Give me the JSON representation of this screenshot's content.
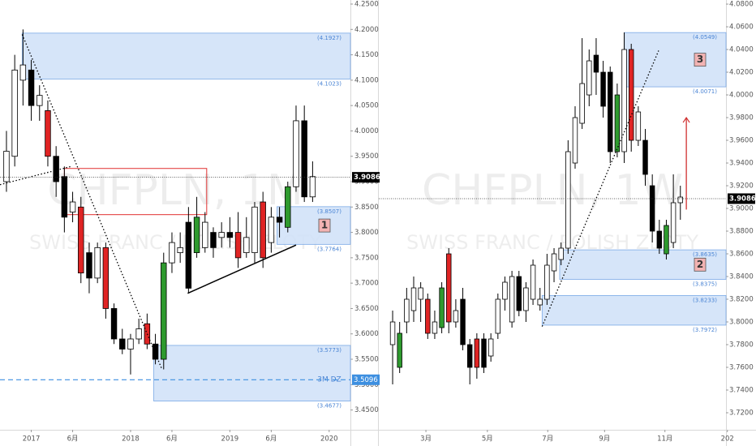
{
  "chart_data": [
    {
      "type": "candlestick",
      "watermark": "CHFPLN, 1M",
      "watermark_subtitle": "SWISS FRANC / POLISH ZLOTY",
      "open": [
        3.9,
        3.95,
        4.1,
        4.12,
        4.05,
        4.04,
        3.95,
        3.91,
        3.84,
        3.85,
        3.76,
        3.71,
        3.77,
        3.65,
        3.59,
        3.57,
        3.59,
        3.62,
        3.58,
        3.55,
        3.74,
        3.76,
        3.82,
        3.76,
        3.77,
        3.8,
        3.79,
        3.8,
        3.8,
        3.76,
        3.76,
        3.86,
        3.78,
        3.83,
        3.81,
        3.89,
        4.02,
        3.87
      ],
      "high": [
        4.0,
        4.15,
        4.2,
        4.14,
        4.09,
        4.06,
        3.97,
        3.93,
        3.88,
        3.87,
        3.78,
        3.78,
        3.78,
        3.66,
        3.61,
        3.6,
        3.63,
        3.64,
        3.6,
        3.76,
        3.8,
        3.8,
        3.85,
        3.87,
        3.84,
        3.81,
        3.82,
        3.83,
        3.84,
        3.83,
        3.86,
        3.88,
        3.85,
        3.85,
        3.9,
        4.05,
        4.05,
        3.94
      ],
      "low": [
        3.88,
        3.93,
        4.05,
        4.02,
        4.02,
        3.93,
        3.87,
        3.8,
        3.82,
        3.7,
        3.68,
        3.7,
        3.63,
        3.58,
        3.56,
        3.52,
        3.58,
        3.57,
        3.54,
        3.53,
        3.72,
        3.74,
        3.68,
        3.75,
        3.76,
        3.75,
        3.77,
        3.77,
        3.73,
        3.75,
        3.74,
        3.73,
        3.76,
        3.79,
        3.8,
        3.88,
        3.86,
        3.86
      ],
      "close": [
        3.96,
        4.12,
        4.13,
        4.05,
        4.07,
        3.95,
        3.9,
        3.83,
        3.86,
        3.72,
        3.71,
        3.77,
        3.65,
        3.59,
        3.57,
        3.59,
        3.61,
        3.58,
        3.55,
        3.74,
        3.78,
        3.77,
        3.69,
        3.83,
        3.82,
        3.77,
        3.8,
        3.79,
        3.75,
        3.79,
        3.85,
        3.75,
        3.83,
        3.82,
        3.89,
        4.02,
        3.87,
        3.91
      ],
      "colors": [
        "#ffffff",
        "#ffffff",
        "#ffffff",
        "#000000",
        "#ffffff",
        "#e02424",
        "#000000",
        "#000000",
        "#ffffff",
        "#e02424",
        "#000000",
        "#ffffff",
        "#e02424",
        "#000000",
        "#000000",
        "#ffffff",
        "#ffffff",
        "#e02424",
        "#000000",
        "#2e9a2e",
        "#ffffff",
        "#ffffff",
        "#000000",
        "#2e9a2e",
        "#ffffff",
        "#000000",
        "#ffffff",
        "#000000",
        "#e02424",
        "#ffffff",
        "#ffffff",
        "#e02424",
        "#ffffff",
        "#000000",
        "#2e9a2e",
        "#ffffff",
        "#000000",
        "#ffffff"
      ],
      "xlim": [
        -0.78,
        41.57
      ],
      "xticks": [
        {
          "value": 3,
          "label": "2017"
        },
        {
          "value": 8,
          "label": "6月"
        },
        {
          "value": 15,
          "label": "2018"
        },
        {
          "value": 20,
          "label": "6月"
        },
        {
          "value": 27,
          "label": "2019"
        },
        {
          "value": 32,
          "label": "6月"
        },
        {
          "value": 39,
          "label": "2020"
        }
      ],
      "ylim": [
        3.411,
        4.258
      ],
      "yticks": [
        {
          "value": 4.25,
          "label": "4.2500"
        },
        {
          "value": 4.2,
          "label": "4.2000"
        },
        {
          "value": 4.15,
          "label": "4.1500"
        },
        {
          "value": 4.1,
          "label": "4.1000"
        },
        {
          "value": 4.05,
          "label": "4.0500"
        },
        {
          "value": 4,
          "label": "4.0000"
        },
        {
          "value": 3.95,
          "label": "3.9500"
        },
        {
          "value": 3.9,
          "label": "3.9000"
        },
        {
          "value": 3.85,
          "label": "3.8500"
        },
        {
          "value": 3.8,
          "label": "3.8000"
        },
        {
          "value": 3.75,
          "label": "3.7500"
        },
        {
          "value": 3.7,
          "label": "3.7000"
        },
        {
          "value": 3.65,
          "label": "3.6500"
        },
        {
          "value": 3.6,
          "label": "3.6000"
        },
        {
          "value": 3.55,
          "label": "3.5500"
        },
        {
          "value": 3.5,
          "label": "3.5000"
        },
        {
          "value": 3.45,
          "label": "3.4500"
        }
      ],
      "last_price": 3.9086,
      "zones": [
        {
          "x_start": 1.9,
          "top": 4.1927,
          "bottom": 4.1023,
          "top_label": "(4.1927)",
          "bottom_label": "(4.1023)"
        },
        {
          "x_start": 32.7,
          "top": 3.8507,
          "bottom": 3.7764,
          "top_label": "(3.8507)",
          "bottom_label": "(3.7764)",
          "tag": "1",
          "tag_box": true
        },
        {
          "x_start": 17.8,
          "top": 3.5773,
          "bottom": 3.4677,
          "top_label": "(3.5773)",
          "bottom_label": "(3.4677)",
          "tag": "3M DZ",
          "tag_box": false
        }
      ],
      "boxes": [
        {
          "x_start": 7,
          "x_end": 24.2,
          "top": 3.926,
          "bottom": 3.835,
          "color": "#e03030"
        }
      ],
      "levels": [
        {
          "value": 3.5096,
          "color": "#3d8fe0"
        }
      ],
      "lines": [
        {
          "points": [
            [
              1.9,
              4.19
            ],
            [
              18.8,
              3.53
            ]
          ],
          "color": "#000000",
          "style": "dotted"
        },
        {
          "points": [
            [
              -0.78,
              3.894
            ],
            [
              7.8,
              3.93
            ]
          ],
          "color": "#000000",
          "style": "dotted"
        },
        {
          "points": [
            [
              21.9,
              3.68
            ],
            [
              35,
              3.775
            ]
          ],
          "color": "#000000",
          "style": "solid"
        }
      ]
    },
    {
      "type": "candlestick",
      "watermark": "CHFPLN, 1W",
      "watermark_subtitle": "SWISS FRANC / POLISH ZLOTY",
      "open": [
        3.78,
        3.76,
        3.8,
        3.81,
        3.82,
        3.82,
        3.79,
        3.795,
        3.86,
        3.8,
        3.82,
        3.78,
        3.785,
        3.785,
        3.77,
        3.79,
        3.82,
        3.8,
        3.84,
        3.81,
        3.82,
        3.815,
        3.82,
        3.845,
        3.855,
        3.865,
        3.94,
        3.975,
        4.0,
        4.035,
        4.02,
        4.02,
        3.95,
        3.95,
        4.04,
        3.96,
        3.96,
        3.92,
        3.88,
        3.86,
        3.87,
        3.905
      ],
      "high": [
        3.81,
        3.8,
        3.83,
        3.84,
        3.835,
        3.825,
        3.81,
        3.835,
        3.865,
        3.82,
        3.83,
        3.785,
        3.79,
        3.79,
        3.79,
        3.825,
        3.84,
        3.845,
        3.845,
        3.835,
        3.855,
        3.83,
        3.86,
        3.865,
        3.87,
        3.96,
        3.99,
        4.05,
        4.04,
        4.05,
        4.03,
        4.025,
        4.01,
        4.055,
        4.045,
        3.99,
        3.97,
        3.93,
        3.89,
        3.89,
        3.93,
        3.92
      ],
      "low": [
        3.745,
        3.755,
        3.79,
        3.8,
        3.8,
        3.785,
        3.785,
        3.79,
        3.79,
        3.795,
        3.775,
        3.745,
        3.75,
        3.755,
        3.765,
        3.785,
        3.81,
        3.795,
        3.805,
        3.8,
        3.815,
        3.81,
        3.815,
        3.835,
        3.85,
        3.86,
        3.935,
        3.97,
        3.99,
        4.0,
        3.98,
        3.94,
        3.945,
        3.94,
        3.95,
        3.955,
        3.92,
        3.87,
        3.86,
        3.855,
        3.865,
        3.89
      ],
      "close": [
        3.8,
        3.79,
        3.82,
        3.83,
        3.83,
        3.79,
        3.8,
        3.83,
        3.8,
        3.81,
        3.78,
        3.76,
        3.76,
        3.76,
        3.785,
        3.82,
        3.835,
        3.84,
        3.81,
        3.83,
        3.85,
        3.82,
        3.85,
        3.86,
        3.865,
        3.95,
        3.98,
        4.01,
        4.03,
        4.02,
        3.99,
        3.95,
        4.0,
        4.04,
        3.96,
        3.985,
        3.93,
        3.88,
        3.865,
        3.885,
        3.905,
        3.91
      ],
      "colors": [
        "#ffffff",
        "#2e9a2e",
        "#ffffff",
        "#ffffff",
        "#ffffff",
        "#e02424",
        "#ffffff",
        "#2e9a2e",
        "#e02424",
        "#ffffff",
        "#000000",
        "#000000",
        "#e02424",
        "#000000",
        "#ffffff",
        "#ffffff",
        "#ffffff",
        "#ffffff",
        "#000000",
        "#ffffff",
        "#ffffff",
        "#ffffff",
        "#ffffff",
        "#ffffff",
        "#ffffff",
        "#ffffff",
        "#ffffff",
        "#ffffff",
        "#ffffff",
        "#000000",
        "#000000",
        "#000000",
        "#2e9a2e",
        "#ffffff",
        "#e02424",
        "#ffffff",
        "#000000",
        "#000000",
        "#000000",
        "#2e9a2e",
        "#ffffff",
        "#ffffff"
      ],
      "xlim": [
        -1.97,
        47.5
      ],
      "xticks": [
        {
          "value": 4.74,
          "label": "3月"
        },
        {
          "value": 13.5,
          "label": "5月"
        },
        {
          "value": 22.1,
          "label": "7月"
        },
        {
          "value": 30.2,
          "label": "9月"
        },
        {
          "value": 38.8,
          "label": "11月"
        },
        {
          "value": 47.7,
          "label": "202"
        }
      ],
      "ylim": [
        3.705,
        4.0836
      ],
      "yticks": [
        {
          "value": 4.08,
          "label": "4.0800"
        },
        {
          "value": 4.06,
          "label": "4.0600"
        },
        {
          "value": 4.04,
          "label": "4.0400"
        },
        {
          "value": 4.02,
          "label": "4.0200"
        },
        {
          "value": 4,
          "label": "4.0000"
        },
        {
          "value": 3.98,
          "label": "3.9800"
        },
        {
          "value": 3.96,
          "label": "3.9600"
        },
        {
          "value": 3.94,
          "label": "3.9400"
        },
        {
          "value": 3.92,
          "label": "3.9200"
        },
        {
          "value": 3.9,
          "label": "3.9000"
        },
        {
          "value": 3.88,
          "label": "3.8800"
        },
        {
          "value": 3.86,
          "label": "3.8600"
        },
        {
          "value": 3.84,
          "label": "3.8400"
        },
        {
          "value": 3.82,
          "label": "3.8200"
        },
        {
          "value": 3.8,
          "label": "3.8000"
        },
        {
          "value": 3.78,
          "label": "3.7800"
        },
        {
          "value": 3.76,
          "label": "3.7600"
        },
        {
          "value": 3.74,
          "label": "3.7400"
        },
        {
          "value": 3.72,
          "label": "3.7200"
        }
      ],
      "last_price": 3.9086,
      "zones": [
        {
          "x_start": 33,
          "top": 4.0549,
          "bottom": 4.0071,
          "top_label": "(4.0549)",
          "bottom_label": "(4.0071)",
          "tag": "3",
          "tag_box": true
        },
        {
          "x_start": 23.8,
          "top": 3.8635,
          "bottom": 3.8375,
          "top_label": "(3.8635)",
          "bottom_label": "(3.8375)",
          "tag": "2",
          "tag_box": true
        },
        {
          "x_start": 21.3,
          "top": 3.8233,
          "bottom": 3.7972,
          "top_label": "(3.8233)",
          "bottom_label": "(3.7972)"
        }
      ],
      "boxes": [],
      "levels": [],
      "lines": [
        {
          "points": [
            [
              21.3,
              3.796
            ],
            [
              37.9,
              4.039
            ]
          ],
          "color": "#000000",
          "style": "dotted"
        },
        {
          "points": [
            [
              41.85,
              3.899
            ],
            [
              41.85,
              3.98
            ]
          ],
          "color": "#d03030",
          "style": "arrow"
        }
      ]
    }
  ]
}
